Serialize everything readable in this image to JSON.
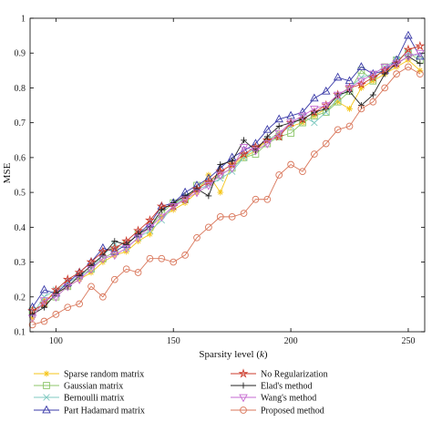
{
  "chart_data": {
    "type": "line",
    "xlabel_text": "Sparsity level (",
    "xlabel_var": "k",
    "xlabel_close": ")",
    "ylabel": "MSE",
    "xlim": [
      89,
      257
    ],
    "ylim": [
      0.1,
      1.0
    ],
    "xticks": [
      100,
      150,
      200,
      250
    ],
    "yticks": [
      0.1,
      0.2,
      0.3,
      0.4,
      0.5,
      0.6,
      0.7,
      0.8,
      0.9,
      1.0
    ],
    "ytick_labels": [
      "0.1",
      "0.2",
      "0.3",
      "0.4",
      "0.5",
      "0.6",
      "0.7",
      "0.8",
      "0.9",
      "1"
    ],
    "legend_position": "below-plot",
    "x": [
      90,
      95,
      100,
      105,
      110,
      115,
      120,
      125,
      130,
      135,
      140,
      145,
      150,
      155,
      160,
      165,
      170,
      175,
      180,
      185,
      190,
      195,
      200,
      205,
      210,
      215,
      220,
      225,
      230,
      235,
      240,
      245,
      250,
      255
    ],
    "series": [
      {
        "name": "Sparse random matrix",
        "color": "#f5c518",
        "marker": "asterisk",
        "values": [
          0.14,
          0.19,
          0.21,
          0.23,
          0.25,
          0.27,
          0.3,
          0.32,
          0.33,
          0.36,
          0.38,
          0.43,
          0.45,
          0.47,
          0.5,
          0.55,
          0.5,
          0.58,
          0.6,
          0.62,
          0.65,
          0.67,
          0.69,
          0.7,
          0.72,
          0.74,
          0.76,
          0.74,
          0.8,
          0.82,
          0.84,
          0.86,
          0.88,
          0.85
        ]
      },
      {
        "name": "Gaussian matrix",
        "color": "#8cc66a",
        "marker": "square",
        "values": [
          0.16,
          0.18,
          0.2,
          0.23,
          0.26,
          0.28,
          0.31,
          0.33,
          0.35,
          0.38,
          0.4,
          0.44,
          0.47,
          0.48,
          0.52,
          0.53,
          0.55,
          0.57,
          0.6,
          0.61,
          0.64,
          0.66,
          0.67,
          0.7,
          0.72,
          0.73,
          0.76,
          0.79,
          0.85,
          0.82,
          0.86,
          0.88,
          0.9,
          0.88
        ]
      },
      {
        "name": "Bernoulli matrix",
        "color": "#7fc9c0",
        "marker": "x",
        "values": [
          0.15,
          0.2,
          0.22,
          0.24,
          0.26,
          0.28,
          0.32,
          0.35,
          0.34,
          0.37,
          0.39,
          0.42,
          0.46,
          0.49,
          0.51,
          0.52,
          0.54,
          0.56,
          0.6,
          0.63,
          0.65,
          0.67,
          0.69,
          0.72,
          0.7,
          0.73,
          0.77,
          0.8,
          0.83,
          0.84,
          0.86,
          0.88,
          0.9,
          0.89
        ]
      },
      {
        "name": "Part Hadamard matrix",
        "color": "#3a3aa8",
        "marker": "triangle-up",
        "values": [
          0.17,
          0.22,
          0.21,
          0.24,
          0.27,
          0.3,
          0.34,
          0.33,
          0.35,
          0.38,
          0.41,
          0.46,
          0.47,
          0.5,
          0.52,
          0.54,
          0.57,
          0.6,
          0.62,
          0.64,
          0.68,
          0.71,
          0.72,
          0.73,
          0.77,
          0.79,
          0.83,
          0.82,
          0.86,
          0.84,
          0.85,
          0.88,
          0.95,
          0.89
        ]
      },
      {
        "name": "No Regularization",
        "color": "#cc3b2b",
        "marker": "star",
        "values": [
          0.16,
          0.18,
          0.22,
          0.25,
          0.27,
          0.3,
          0.33,
          0.34,
          0.36,
          0.39,
          0.42,
          0.46,
          0.46,
          0.48,
          0.51,
          0.53,
          0.56,
          0.58,
          0.61,
          0.63,
          0.65,
          0.66,
          0.7,
          0.71,
          0.73,
          0.75,
          0.78,
          0.8,
          0.81,
          0.83,
          0.85,
          0.87,
          0.91,
          0.92
        ]
      },
      {
        "name": "Elad's method",
        "color": "#222222",
        "marker": "plus",
        "values": [
          0.15,
          0.17,
          0.21,
          0.23,
          0.26,
          0.29,
          0.32,
          0.36,
          0.35,
          0.38,
          0.4,
          0.45,
          0.47,
          0.49,
          0.51,
          0.49,
          0.58,
          0.59,
          0.65,
          0.62,
          0.66,
          0.69,
          0.7,
          0.71,
          0.73,
          0.74,
          0.78,
          0.79,
          0.75,
          0.78,
          0.84,
          0.87,
          0.89,
          0.87
        ]
      },
      {
        "name": "Wang's method",
        "color": "#c66ad0",
        "marker": "triangle-down",
        "values": [
          0.14,
          0.19,
          0.2,
          0.23,
          0.25,
          0.28,
          0.31,
          0.32,
          0.34,
          0.37,
          0.4,
          0.43,
          0.46,
          0.48,
          0.5,
          0.52,
          0.55,
          0.57,
          0.63,
          0.62,
          0.64,
          0.67,
          0.7,
          0.72,
          0.74,
          0.75,
          0.78,
          0.8,
          0.82,
          0.84,
          0.86,
          0.87,
          0.89,
          0.9
        ]
      },
      {
        "name": "Proposed method",
        "color": "#d9765a",
        "marker": "circle",
        "values": [
          0.12,
          0.13,
          0.15,
          0.17,
          0.18,
          0.23,
          0.2,
          0.25,
          0.28,
          0.27,
          0.31,
          0.31,
          0.3,
          0.32,
          0.37,
          0.4,
          0.43,
          0.43,
          0.44,
          0.48,
          0.48,
          0.55,
          0.58,
          0.56,
          0.61,
          0.64,
          0.68,
          0.69,
          0.74,
          0.76,
          0.8,
          0.84,
          0.86,
          0.84
        ]
      }
    ]
  }
}
